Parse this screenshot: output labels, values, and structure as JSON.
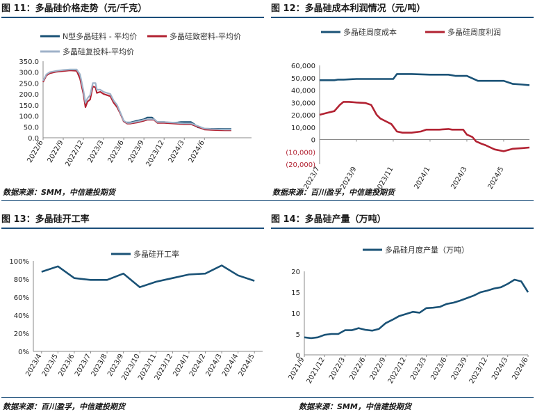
{
  "colors": {
    "navy": "#1a5276",
    "red": "#b22232",
    "gray": "#9fb2c8",
    "rule": "#1b4e7a",
    "neg": "#b22232",
    "axis": "#444444"
  },
  "panels": [
    {
      "title": "图 11：多晶硅价格走势（元/千克）",
      "source": "数据来源：SMM，中信建投期货"
    },
    {
      "title": "图 12：多晶硅成本利润情况（元/吨）",
      "source": "数据来源：百川盈孚，中信建投期货"
    },
    {
      "title": "图 13：多晶硅开工率",
      "source": "数据来源：百川盈孚，中信建投期货"
    },
    {
      "title": "图 14：多晶硅产量（万吨）",
      "source": "数据来源：SMM，中信建投期货"
    }
  ],
  "chart_data": [
    {
      "type": "line",
      "title": "多晶硅价格走势（元/千克）",
      "ylim": [
        0,
        350
      ],
      "yticks": [
        "0.0",
        "50.0",
        "100.0",
        "150.0",
        "200.0",
        "250.0",
        "300.0",
        "350.0"
      ],
      "x_range": [
        0,
        31
      ],
      "xticks": [
        {
          "label": "2022/6",
          "x": 0
        },
        {
          "label": "2022/9",
          "x": 3
        },
        {
          "label": "2022/12",
          "x": 6
        },
        {
          "label": "2023/3",
          "x": 9
        },
        {
          "label": "2023/6",
          "x": 12
        },
        {
          "label": "2023/9",
          "x": 15
        },
        {
          "label": "2023/12",
          "x": 18
        },
        {
          "label": "2024/3",
          "x": 21
        },
        {
          "label": "2024/6",
          "x": 24
        }
      ],
      "series": [
        {
          "name": "N型多晶硅料 - 平均价",
          "color": "#1a5276",
          "x": [
            11.9,
            12.3,
            13,
            14,
            15,
            15.5,
            16.2,
            17,
            18,
            19,
            20,
            20.5,
            21,
            22,
            22.5,
            23,
            24,
            25,
            26,
            27,
            28
          ],
          "y": [
            78,
            70,
            70,
            78,
            85,
            93,
            93,
            72,
            72,
            68,
            70,
            72,
            72,
            72,
            62,
            48,
            42,
            41,
            41,
            40,
            40
          ]
        },
        {
          "name": "多晶硅致密料-平均价",
          "color": "#b22232",
          "x": [
            0,
            0.5,
            1,
            2,
            3,
            4,
            5,
            5.5,
            6,
            6.3,
            6.6,
            7,
            7.4,
            7.8,
            8,
            8.5,
            9,
            10,
            10.5,
            11,
            11.5,
            12,
            12.5,
            13,
            14,
            15,
            15.5,
            16.5,
            17,
            18,
            19,
            20,
            21,
            22,
            23,
            24,
            25,
            26,
            27,
            28
          ],
          "y": [
            255,
            285,
            295,
            302,
            305,
            308,
            306,
            270,
            200,
            140,
            165,
            175,
            235,
            230,
            205,
            210,
            200,
            190,
            160,
            140,
            110,
            75,
            65,
            65,
            70,
            78,
            82,
            82,
            68,
            68,
            66,
            64,
            62,
            62,
            50,
            38,
            36,
            35,
            34,
            34
          ]
        },
        {
          "name": "多晶硅复投料-平均价",
          "color": "#9fb2c8",
          "x": [
            0,
            0.5,
            1,
            2,
            3,
            4,
            5,
            5.5,
            6,
            6.3,
            6.6,
            7,
            7.4,
            7.8,
            8,
            8.5,
            9,
            10,
            10.5,
            11,
            11.5,
            12,
            12.5,
            13,
            14,
            15,
            15.5,
            16.5,
            17,
            18,
            19,
            20,
            21,
            22,
            23,
            24,
            25,
            26,
            27,
            28
          ],
          "y": [
            260,
            290,
            300,
            306,
            310,
            312,
            312,
            290,
            215,
            160,
            180,
            195,
            250,
            250,
            220,
            220,
            210,
            200,
            170,
            150,
            115,
            78,
            68,
            68,
            74,
            82,
            85,
            85,
            72,
            72,
            70,
            68,
            66,
            66,
            54,
            42,
            40,
            39,
            38,
            38
          ]
        }
      ]
    },
    {
      "type": "line",
      "title": "多晶硅成本利润情况（元/吨）",
      "ylim": [
        -20000,
        60000
      ],
      "yticks": [
        "(20,000)",
        "(10,000)",
        "0",
        "10,000",
        "20,000",
        "30,000",
        "40,000",
        "50,000",
        "60,000"
      ],
      "x_range": [
        0,
        11.4
      ],
      "xticks": [
        {
          "label": "2023/7",
          "x": 0
        },
        {
          "label": "2023/9",
          "x": 2
        },
        {
          "label": "2023/11",
          "x": 4
        },
        {
          "label": "2024/1",
          "x": 6
        },
        {
          "label": "2024/3",
          "x": 8
        },
        {
          "label": "2024/5",
          "x": 10
        }
      ],
      "series": [
        {
          "name": "多晶硅周度成本",
          "color": "#1a5276",
          "x": [
            0,
            0.8,
            1,
            1.3,
            2,
            3,
            4,
            4.2,
            5,
            6,
            7,
            7.4,
            8,
            8.6,
            9,
            10,
            10.5,
            11,
            11.4
          ],
          "y": [
            48000,
            48000,
            48500,
            48500,
            49000,
            49000,
            49000,
            53000,
            53000,
            52500,
            52500,
            51500,
            51500,
            47500,
            47500,
            47500,
            45000,
            44500,
            44000
          ]
        },
        {
          "name": "多晶硅周度利润",
          "color": "#b22232",
          "x": [
            0,
            0.4,
            0.8,
            1.1,
            1.3,
            1.6,
            2,
            2.5,
            2.8,
            3.1,
            3.3,
            3.5,
            3.9,
            4.2,
            4.5,
            5,
            5.5,
            5.8,
            6.5,
            7,
            7.2,
            7.5,
            7.8,
            8,
            8.3,
            8.5,
            8.8,
            9,
            9.5,
            10,
            10.5,
            11,
            11.4
          ],
          "y": [
            20000,
            21500,
            23000,
            28000,
            30500,
            30500,
            30000,
            29500,
            28000,
            20000,
            17000,
            15500,
            12500,
            6500,
            5500,
            5500,
            6500,
            8000,
            8000,
            8500,
            8000,
            8000,
            8000,
            4000,
            2000,
            -1500,
            -3500,
            -4500,
            -8000,
            -9500,
            -7500,
            -7000,
            -6500
          ]
        }
      ]
    },
    {
      "type": "line",
      "title": "多晶硅开工率",
      "ylim": [
        0,
        100
      ],
      "yticks": [
        "0%",
        "20%",
        "40%",
        "60%",
        "80%",
        "100%"
      ],
      "categories": [
        "2023/4",
        "2023/5",
        "2023/6",
        "2023/7",
        "2023/8",
        "2023/9",
        "2023/10",
        "2023/11",
        "2023/12",
        "2024/1",
        "2024/2",
        "2024/3",
        "2024/4",
        "2024/5"
      ],
      "series": [
        {
          "name": "多晶硅开工率",
          "color": "#1a5276",
          "values": [
            88,
            94,
            81,
            79,
            79,
            86,
            71,
            77,
            81,
            85,
            86,
            95,
            84,
            78
          ]
        }
      ]
    },
    {
      "type": "line",
      "title": "多晶硅产量（万吨）",
      "ylim": [
        0,
        20
      ],
      "yticks": [
        "0",
        "5",
        "10",
        "15",
        "20"
      ],
      "x_range": [
        0,
        33
      ],
      "xticks": [
        {
          "label": "2021/9",
          "x": 0
        },
        {
          "label": "2021/12",
          "x": 3
        },
        {
          "label": "2022/3",
          "x": 6
        },
        {
          "label": "2022/6",
          "x": 9
        },
        {
          "label": "2022/9",
          "x": 12
        },
        {
          "label": "2022/12",
          "x": 15
        },
        {
          "label": "2023/3",
          "x": 18
        },
        {
          "label": "2023/6",
          "x": 21
        },
        {
          "label": "2023/9",
          "x": 24
        },
        {
          "label": "2023/12",
          "x": 27
        },
        {
          "label": "2024/3",
          "x": 30
        },
        {
          "label": "2024/6",
          "x": 33
        }
      ],
      "series": [
        {
          "name": "多晶硅月度产量（万吨）",
          "color": "#1a5276",
          "x": [
            0,
            1,
            2,
            3,
            4,
            5,
            6,
            7,
            8,
            9,
            10,
            11,
            12,
            13,
            14,
            15,
            16,
            17,
            18,
            19,
            20,
            21,
            22,
            23,
            24,
            25,
            26,
            27,
            28,
            29,
            30,
            31,
            32,
            33
          ],
          "y": [
            4.2,
            4.0,
            4.2,
            4.8,
            5.0,
            5.0,
            5.9,
            5.9,
            6.4,
            6.0,
            5.8,
            6.2,
            7.6,
            8.4,
            9.3,
            9.8,
            10.3,
            10.1,
            11.2,
            11.3,
            11.5,
            12.2,
            12.5,
            13.0,
            13.6,
            14.2,
            15.0,
            15.4,
            15.9,
            16.2,
            17.0,
            18.0,
            17.6,
            15.0
          ]
        }
      ]
    }
  ]
}
